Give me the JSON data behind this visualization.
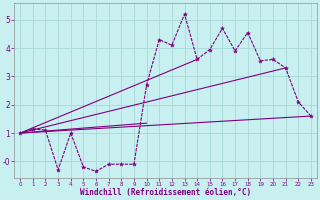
{
  "bg_color": "#c8f0f0",
  "grid_color": "#a8d8d8",
  "line_color": "#800080",
  "xlabel": "Windchill (Refroidissement éolien,°C)",
  "xlim": [
    -0.5,
    23.5
  ],
  "ylim": [
    -0.6,
    5.6
  ],
  "yticks": [
    0,
    1,
    2,
    3,
    4,
    5
  ],
  "ytick_labels": [
    "-0",
    "1",
    "2",
    "3",
    "4",
    "5"
  ],
  "xticks": [
    0,
    1,
    2,
    3,
    4,
    5,
    6,
    7,
    8,
    9,
    10,
    11,
    12,
    13,
    14,
    15,
    16,
    17,
    18,
    19,
    20,
    21,
    22,
    23
  ],
  "series1_x": [
    0,
    1,
    2,
    3,
    4,
    5,
    6,
    7,
    8,
    9,
    10,
    11,
    12,
    13,
    14,
    15,
    16,
    17,
    18,
    19,
    20,
    21,
    22,
    23
  ],
  "series1_y": [
    1.0,
    1.15,
    1.1,
    -0.3,
    1.0,
    -0.2,
    -0.35,
    -0.1,
    -0.1,
    -0.1,
    2.7,
    4.3,
    4.1,
    5.2,
    3.6,
    3.95,
    4.7,
    3.9,
    4.55,
    3.55,
    3.6,
    3.3,
    2.1,
    1.6
  ],
  "trend1_x": [
    0,
    23
  ],
  "trend1_y": [
    1.0,
    1.6
  ],
  "trend2_x": [
    0,
    21
  ],
  "trend2_y": [
    1.0,
    3.3
  ],
  "trend3_x": [
    0,
    14
  ],
  "trend3_y": [
    1.0,
    3.6
  ],
  "trend4_x": [
    0,
    10
  ],
  "trend4_y": [
    1.0,
    1.35
  ]
}
